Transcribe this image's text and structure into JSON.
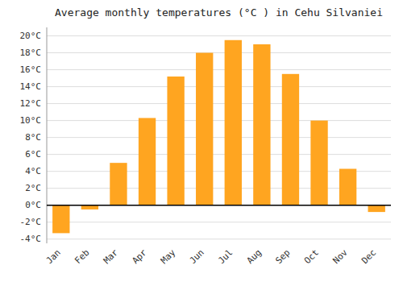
{
  "chart_data": {
    "type": "bar",
    "title": "Average monthly temperatures (°C ) in Cehu Silvaniei",
    "categories": [
      "Jan",
      "Feb",
      "Mar",
      "Apr",
      "May",
      "Jun",
      "Jul",
      "Aug",
      "Sep",
      "Oct",
      "Nov",
      "Dec"
    ],
    "values": [
      -3.3,
      -0.5,
      5.0,
      10.3,
      15.2,
      18.0,
      19.5,
      19.0,
      15.5,
      10.0,
      4.3,
      -0.8
    ],
    "color": "#FFA520",
    "ylim": [
      -4.5,
      21
    ],
    "yticks": [
      {
        "value": -4,
        "label": "-4°C"
      },
      {
        "value": -2,
        "label": "-2°C"
      },
      {
        "value": 0,
        "label": "0°C"
      },
      {
        "value": 2,
        "label": "2°C"
      },
      {
        "value": 4,
        "label": "4°C"
      },
      {
        "value": 6,
        "label": "6°C"
      },
      {
        "value": 8,
        "label": "8°C"
      },
      {
        "value": 10,
        "label": "10°C"
      },
      {
        "value": 12,
        "label": "12°C"
      },
      {
        "value": 14,
        "label": "14°C"
      },
      {
        "value": 16,
        "label": "16°C"
      },
      {
        "value": 18,
        "label": "18°C"
      },
      {
        "value": 20,
        "label": "20°C"
      }
    ],
    "grid": true
  }
}
